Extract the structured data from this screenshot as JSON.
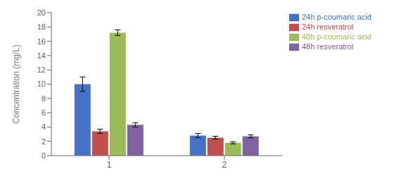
{
  "chart_data": {
    "type": "bar",
    "categories": [
      "1",
      "2"
    ],
    "series": [
      {
        "name": "24h p-coumaric acid",
        "color": "#4472C4",
        "values": [
          10.0,
          2.8
        ],
        "errors": [
          1.0,
          0.3
        ]
      },
      {
        "name": "24h resveratrol",
        "color": "#C0504D",
        "values": [
          3.4,
          2.5
        ],
        "errors": [
          0.3,
          0.2
        ]
      },
      {
        "name": "48h p-coumaric acid",
        "color": "#9BBB59",
        "values": [
          17.2,
          1.8
        ],
        "errors": [
          0.4,
          0.15
        ]
      },
      {
        "name": "48h resveratrol",
        "color": "#8064A2",
        "values": [
          4.3,
          2.7
        ],
        "errors": [
          0.3,
          0.2
        ]
      }
    ],
    "ylabel": "Concentration (mg/L)",
    "ylim": [
      0,
      20
    ],
    "yticks": [
      0,
      2,
      4,
      6,
      8,
      10,
      12,
      14,
      16,
      18,
      20
    ],
    "legend": "upper right",
    "grid": false
  }
}
